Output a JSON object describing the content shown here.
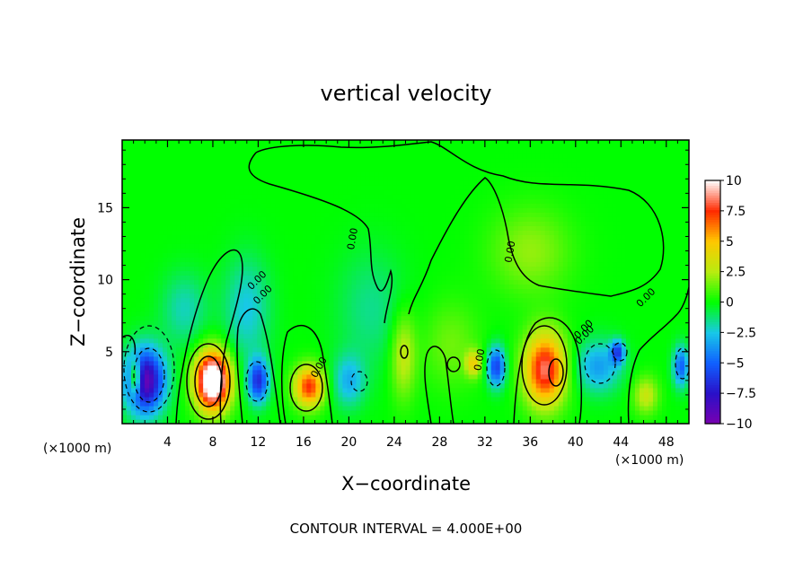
{
  "chart_data": {
    "type": "heatmap",
    "title": "vertical velocity",
    "xlabel": "X−coordinate",
    "ylabel": "Z−coordinate",
    "x_unit_left": "(×1000 m)",
    "x_unit_right": "(×1000 m)",
    "footer": "CONTOUR INTERVAL = 4.000E+00",
    "xlim": [
      0,
      50
    ],
    "ylim": [
      0,
      19.7
    ],
    "x_ticks": [
      4,
      8,
      12,
      16,
      20,
      24,
      28,
      32,
      36,
      40,
      44,
      48
    ],
    "x_tick_labels": [
      "4",
      "8",
      "12",
      "16",
      "20",
      "24",
      "28",
      "32",
      "36",
      "40",
      "44",
      "48"
    ],
    "y_ticks": [
      5,
      10,
      15
    ],
    "y_tick_labels": [
      "5",
      "10",
      "15"
    ],
    "colorbar": {
      "range": [
        -10,
        10
      ],
      "ticks": [
        10,
        7.5,
        5,
        2.5,
        0,
        -2.5,
        -5,
        -7.5,
        -10
      ],
      "tick_labels": [
        "10",
        "7.5",
        "5",
        "2.5",
        "0",
        "−2.5",
        "−5",
        "−7.5",
        "−10"
      ],
      "colors": [
        "#7a00b0",
        "#2a10c8",
        "#1060ff",
        "#18c8e8",
        "#00ff00",
        "#b8ec10",
        "#ffc800",
        "#ff2a00",
        "#ffffff"
      ]
    },
    "contour_label": "0.00",
    "cells": [
      {
        "x": 2.0,
        "z": 3.0,
        "sx": 1.7,
        "sz": 2.2,
        "w": -9.5
      },
      {
        "x": 1.2,
        "z": 3.2,
        "sx": 0.5,
        "sz": 1.2,
        "w": 7
      },
      {
        "x": 8.0,
        "z": 3.0,
        "sx": 1.5,
        "sz": 2.0,
        "w": 13
      },
      {
        "x": 12.0,
        "z": 3.0,
        "sx": 0.9,
        "sz": 1.5,
        "w": -6.5
      },
      {
        "x": 16.5,
        "z": 2.6,
        "sx": 1.3,
        "sz": 1.4,
        "w": 7.5
      },
      {
        "x": 20.0,
        "z": 3.0,
        "sx": 1.4,
        "sz": 1.8,
        "w": -3
      },
      {
        "x": 24.8,
        "z": 4.8,
        "sx": 1.1,
        "sz": 3.0,
        "w": 3
      },
      {
        "x": 31.0,
        "z": 4.2,
        "sx": 0.7,
        "sz": 0.9,
        "w": 4
      },
      {
        "x": 33.0,
        "z": 4.0,
        "sx": 0.8,
        "sz": 1.4,
        "w": -6
      },
      {
        "x": 37.3,
        "z": 3.8,
        "sx": 1.8,
        "sz": 2.5,
        "w": 8.5
      },
      {
        "x": 42.0,
        "z": 4.0,
        "sx": 2.0,
        "sz": 1.8,
        "w": -3.5
      },
      {
        "x": 43.7,
        "z": 5.0,
        "sx": 0.6,
        "sz": 0.8,
        "w": -5.5
      },
      {
        "x": 46.2,
        "z": 2.0,
        "sx": 1.1,
        "sz": 1.3,
        "w": 3
      },
      {
        "x": 49.3,
        "z": 4.0,
        "sx": 0.7,
        "sz": 1.4,
        "w": -5
      },
      {
        "x": 36.0,
        "z": 12.0,
        "sx": 3.5,
        "sz": 3.0,
        "w": 2
      },
      {
        "x": 11.0,
        "z": 8.0,
        "sx": 2.0,
        "sz": 3.5,
        "w": -2.5
      },
      {
        "x": 29.0,
        "z": 5.5,
        "sx": 2.5,
        "sz": 3.0,
        "w": 1.5
      },
      {
        "x": 5.5,
        "z": 8.0,
        "sx": 2.0,
        "sz": 2.5,
        "w": -2
      },
      {
        "x": 22.0,
        "z": 8.0,
        "sx": 3.0,
        "sz": 4.0,
        "w": -1.5
      }
    ]
  }
}
